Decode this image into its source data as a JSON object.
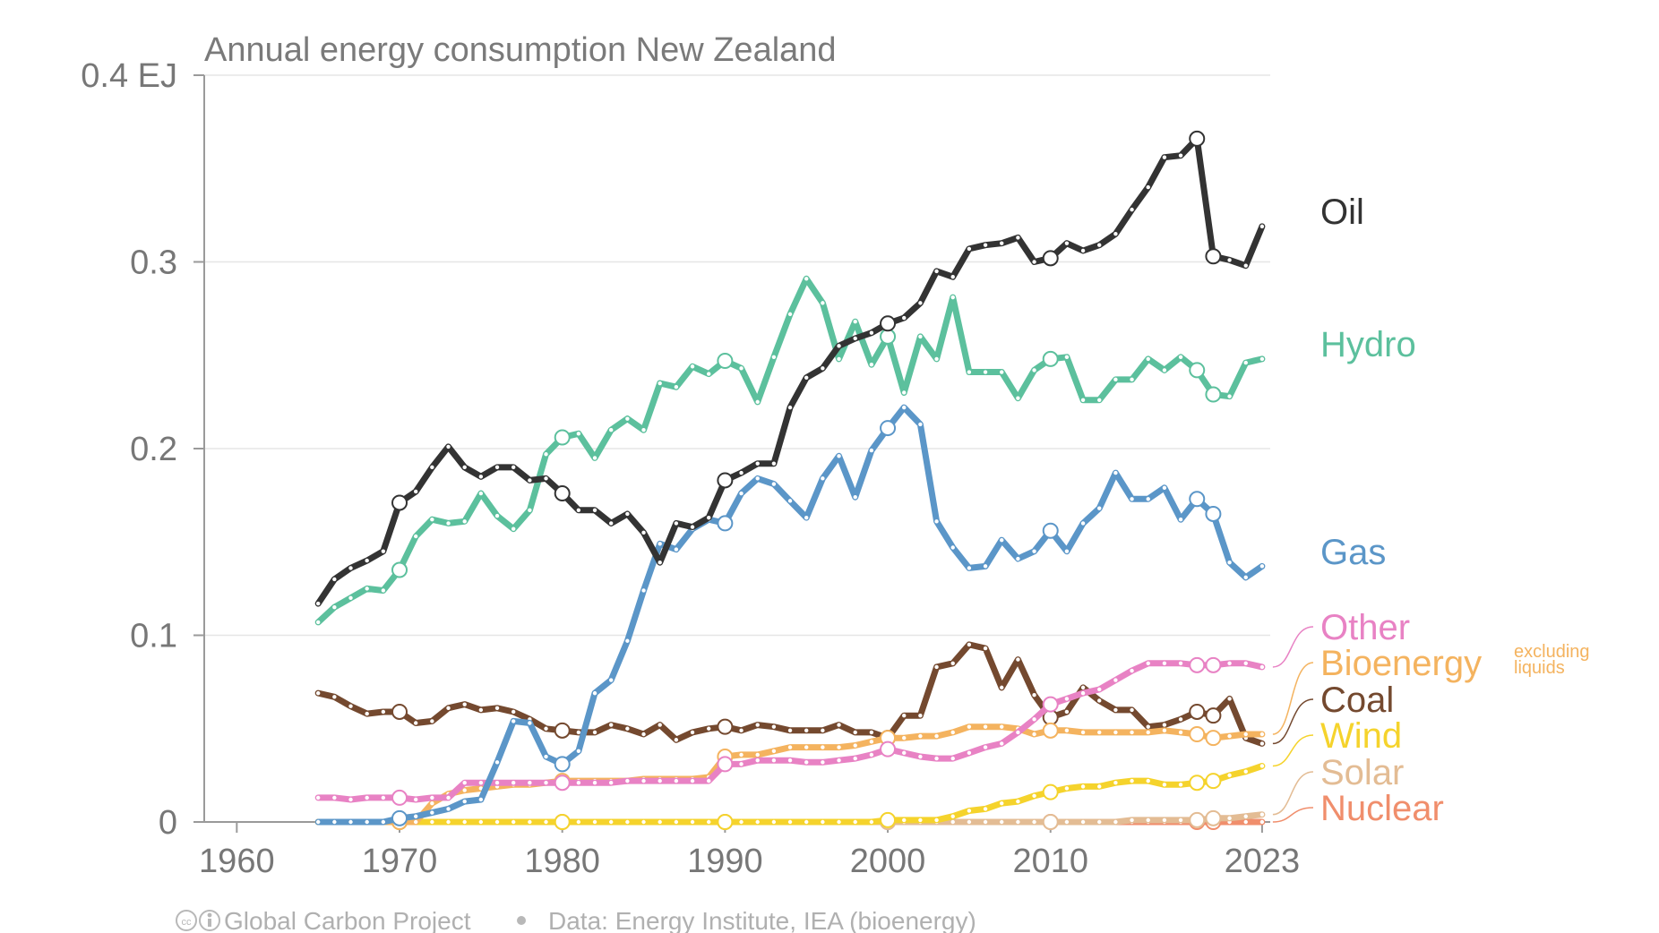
{
  "chart_data": {
    "type": "line",
    "title": "Annual energy consumption New Zealand",
    "xlabel": "",
    "ylabel": "",
    "xlim": [
      1958,
      1965.5
    ],
    "ylim": [
      0,
      0.4
    ],
    "y_ticks": [
      {
        "value": 0.4,
        "label": "0.4 EJ"
      },
      {
        "value": 0.3,
        "label": "0.3"
      },
      {
        "value": 0.2,
        "label": "0.2"
      },
      {
        "value": 0.1,
        "label": "0.1"
      },
      {
        "value": 0,
        "label": "0"
      }
    ],
    "x_ticks": [
      {
        "value": 1960,
        "label": "1960"
      },
      {
        "value": 1970,
        "label": "1970"
      },
      {
        "value": 1980,
        "label": "1980"
      },
      {
        "value": 1990,
        "label": "1990"
      },
      {
        "value": 2000,
        "label": "2000"
      },
      {
        "value": 2010,
        "label": "2010"
      },
      {
        "value": 2023,
        "label": "2023"
      }
    ],
    "grid": true,
    "legend": "direct labels at right end of lines",
    "x": [
      1965,
      1966,
      1967,
      1968,
      1969,
      1970,
      1971,
      1972,
      1973,
      1974,
      1975,
      1976,
      1977,
      1978,
      1979,
      1980,
      1981,
      1982,
      1983,
      1984,
      1985,
      1986,
      1987,
      1988,
      1989,
      1990,
      1991,
      1992,
      1993,
      1994,
      1995,
      1996,
      1997,
      1998,
      1999,
      2000,
      2001,
      2002,
      2003,
      2004,
      2005,
      2006,
      2007,
      2008,
      2009,
      2010,
      2011,
      2012,
      2013,
      2014,
      2015,
      2016,
      2017,
      2018,
      2019,
      2020,
      2021,
      2022,
      2023
    ],
    "series": [
      {
        "name": "Oil",
        "color": "#333333",
        "values": [
          0.117,
          0.13,
          0.136,
          0.14,
          0.145,
          0.171,
          0.177,
          0.19,
          0.201,
          0.19,
          0.185,
          0.19,
          0.19,
          0.183,
          0.184,
          0.176,
          0.167,
          0.167,
          0.16,
          0.165,
          0.155,
          0.139,
          0.16,
          0.158,
          0.163,
          0.183,
          0.187,
          0.192,
          0.192,
          0.222,
          0.238,
          0.243,
          0.255,
          0.259,
          0.262,
          0.267,
          0.27,
          0.278,
          0.295,
          0.292,
          0.307,
          0.309,
          0.31,
          0.313,
          0.3,
          0.302,
          0.31,
          0.306,
          0.309,
          0.315,
          0.328,
          0.34,
          0.356,
          0.357,
          0.366,
          0.303,
          0.301,
          0.298,
          0.319
        ]
      },
      {
        "name": "Hydro",
        "color": "#5cc09d",
        "values": [
          0.107,
          0.115,
          0.12,
          0.125,
          0.124,
          0.135,
          0.153,
          0.162,
          0.16,
          0.161,
          0.176,
          0.164,
          0.157,
          0.167,
          0.197,
          0.206,
          0.208,
          0.195,
          0.21,
          0.216,
          0.21,
          0.235,
          0.233,
          0.244,
          0.24,
          0.247,
          0.243,
          0.225,
          0.249,
          0.272,
          0.291,
          0.278,
          0.248,
          0.268,
          0.245,
          0.26,
          0.23,
          0.26,
          0.248,
          0.281,
          0.241,
          0.241,
          0.241,
          0.227,
          0.242,
          0.248,
          0.249,
          0.226,
          0.226,
          0.237,
          0.237,
          0.248,
          0.242,
          0.249,
          0.242,
          0.229,
          0.228,
          0.246,
          0.248
        ]
      },
      {
        "name": "Gas",
        "color": "#5b96c8",
        "values": [
          0,
          0,
          0,
          0,
          0,
          0.002,
          0.003,
          0.005,
          0.007,
          0.011,
          0.012,
          0.032,
          0.054,
          0.053,
          0.035,
          0.031,
          0.038,
          0.069,
          0.076,
          0.097,
          0.124,
          0.149,
          0.146,
          0.157,
          0.162,
          0.16,
          0.176,
          0.184,
          0.181,
          0.172,
          0.163,
          0.184,
          0.196,
          0.174,
          0.199,
          0.211,
          0.222,
          0.213,
          0.161,
          0.147,
          0.136,
          0.137,
          0.151,
          0.141,
          0.145,
          0.156,
          0.145,
          0.16,
          0.168,
          0.187,
          0.173,
          0.173,
          0.179,
          0.162,
          0.173,
          0.165,
          0.139,
          0.131,
          0.137
        ]
      },
      {
        "name": "Other",
        "color": "#e882c4",
        "values": [
          0.013,
          0.013,
          0.012,
          0.013,
          0.013,
          0.013,
          0.012,
          0.013,
          0.013,
          0.021,
          0.021,
          0.021,
          0.021,
          0.021,
          0.021,
          0.021,
          0.021,
          0.021,
          0.021,
          0.022,
          0.022,
          0.022,
          0.022,
          0.022,
          0.022,
          0.031,
          0.031,
          0.033,
          0.033,
          0.033,
          0.032,
          0.032,
          0.033,
          0.034,
          0.036,
          0.039,
          0.037,
          0.035,
          0.034,
          0.034,
          0.037,
          0.04,
          0.042,
          0.048,
          0.055,
          0.063,
          0.066,
          0.069,
          0.071,
          0.076,
          0.081,
          0.085,
          0.085,
          0.085,
          0.084,
          0.084,
          0.085,
          0.085,
          0.083
        ]
      },
      {
        "name": "Bioenergy",
        "color": "#f4b35f",
        "values": [
          0,
          0,
          0,
          0,
          0,
          0,
          0,
          0.01,
          0.015,
          0.017,
          0.018,
          0.019,
          0.02,
          0.02,
          0.021,
          0.022,
          0.022,
          0.022,
          0.022,
          0.022,
          0.023,
          0.023,
          0.023,
          0.023,
          0.024,
          0.035,
          0.036,
          0.036,
          0.038,
          0.04,
          0.04,
          0.04,
          0.04,
          0.041,
          0.043,
          0.045,
          0.045,
          0.046,
          0.046,
          0.048,
          0.051,
          0.051,
          0.051,
          0.05,
          0.047,
          0.049,
          0.049,
          0.048,
          0.048,
          0.048,
          0.048,
          0.048,
          0.049,
          0.048,
          0.047,
          0.045,
          0.046,
          0.047,
          0.047
        ]
      },
      {
        "name": "Coal",
        "color": "#74492f",
        "values": [
          0.069,
          0.067,
          0.062,
          0.058,
          0.059,
          0.059,
          0.053,
          0.054,
          0.061,
          0.063,
          0.06,
          0.061,
          0.059,
          0.055,
          0.05,
          0.049,
          0.048,
          0.048,
          0.052,
          0.05,
          0.047,
          0.052,
          0.044,
          0.048,
          0.05,
          0.051,
          0.049,
          0.052,
          0.051,
          0.049,
          0.049,
          0.049,
          0.052,
          0.048,
          0.048,
          0.045,
          0.057,
          0.057,
          0.083,
          0.085,
          0.095,
          0.093,
          0.072,
          0.087,
          0.068,
          0.056,
          0.059,
          0.072,
          0.065,
          0.06,
          0.06,
          0.051,
          0.052,
          0.055,
          0.059,
          0.057,
          0.066,
          0.045,
          0.042
        ]
      },
      {
        "name": "Wind",
        "color": "#f5d32c",
        "values": [
          0,
          0,
          0,
          0,
          0,
          0,
          0,
          0,
          0,
          0,
          0,
          0,
          0,
          0,
          0,
          0,
          0,
          0,
          0,
          0,
          0,
          0,
          0,
          0,
          0,
          0,
          0,
          0,
          0,
          0,
          0,
          0,
          0,
          0,
          0,
          0.001,
          0.001,
          0.001,
          0.001,
          0.003,
          0.006,
          0.007,
          0.01,
          0.011,
          0.014,
          0.016,
          0.018,
          0.019,
          0.019,
          0.021,
          0.022,
          0.022,
          0.02,
          0.02,
          0.021,
          0.022,
          0.025,
          0.027,
          0.03
        ]
      },
      {
        "name": "Solar",
        "color": "#e3bc94",
        "values": [
          0,
          0,
          0,
          0,
          0,
          0,
          0,
          0,
          0,
          0,
          0,
          0,
          0,
          0,
          0,
          0,
          0,
          0,
          0,
          0,
          0,
          0,
          0,
          0,
          0,
          0,
          0,
          0,
          0,
          0,
          0,
          0,
          0,
          0,
          0,
          0,
          0,
          0,
          0,
          0,
          0,
          0,
          0,
          0,
          0,
          0,
          0,
          0,
          0,
          0,
          0.001,
          0.001,
          0.001,
          0.001,
          0.001,
          0.002,
          0.002,
          0.003,
          0.004
        ]
      },
      {
        "name": "Nuclear",
        "color": "#f08e6c",
        "values": [
          0,
          0,
          0,
          0,
          0,
          0,
          0,
          0,
          0,
          0,
          0,
          0,
          0,
          0,
          0,
          0,
          0,
          0,
          0,
          0,
          0,
          0,
          0,
          0,
          0,
          0,
          0,
          0,
          0,
          0,
          0,
          0,
          0,
          0,
          0,
          0,
          0,
          0,
          0,
          0,
          0,
          0,
          0,
          0,
          0,
          0,
          0,
          0,
          0,
          0,
          0,
          0,
          0,
          0,
          0,
          0,
          0,
          0,
          0
        ]
      }
    ],
    "labels": [
      {
        "name": "Oil",
        "color": "#333333"
      },
      {
        "name": "Hydro",
        "color": "#5cc09d"
      },
      {
        "name": "Gas",
        "color": "#5b96c8"
      },
      {
        "name": "Other",
        "color": "#e882c4"
      },
      {
        "name": "Bioenergy",
        "color": "#f4b35f",
        "note": [
          "excluding",
          "liquids"
        ]
      },
      {
        "name": "Coal",
        "color": "#74492f"
      },
      {
        "name": "Wind",
        "color": "#f5d32c"
      },
      {
        "name": "Solar",
        "color": "#e3bc94"
      },
      {
        "name": "Nuclear",
        "color": "#f08e6c"
      }
    ],
    "footer": "Global Carbon Project",
    "source": "Data: Energy Institute, IEA (bioenergy)"
  }
}
